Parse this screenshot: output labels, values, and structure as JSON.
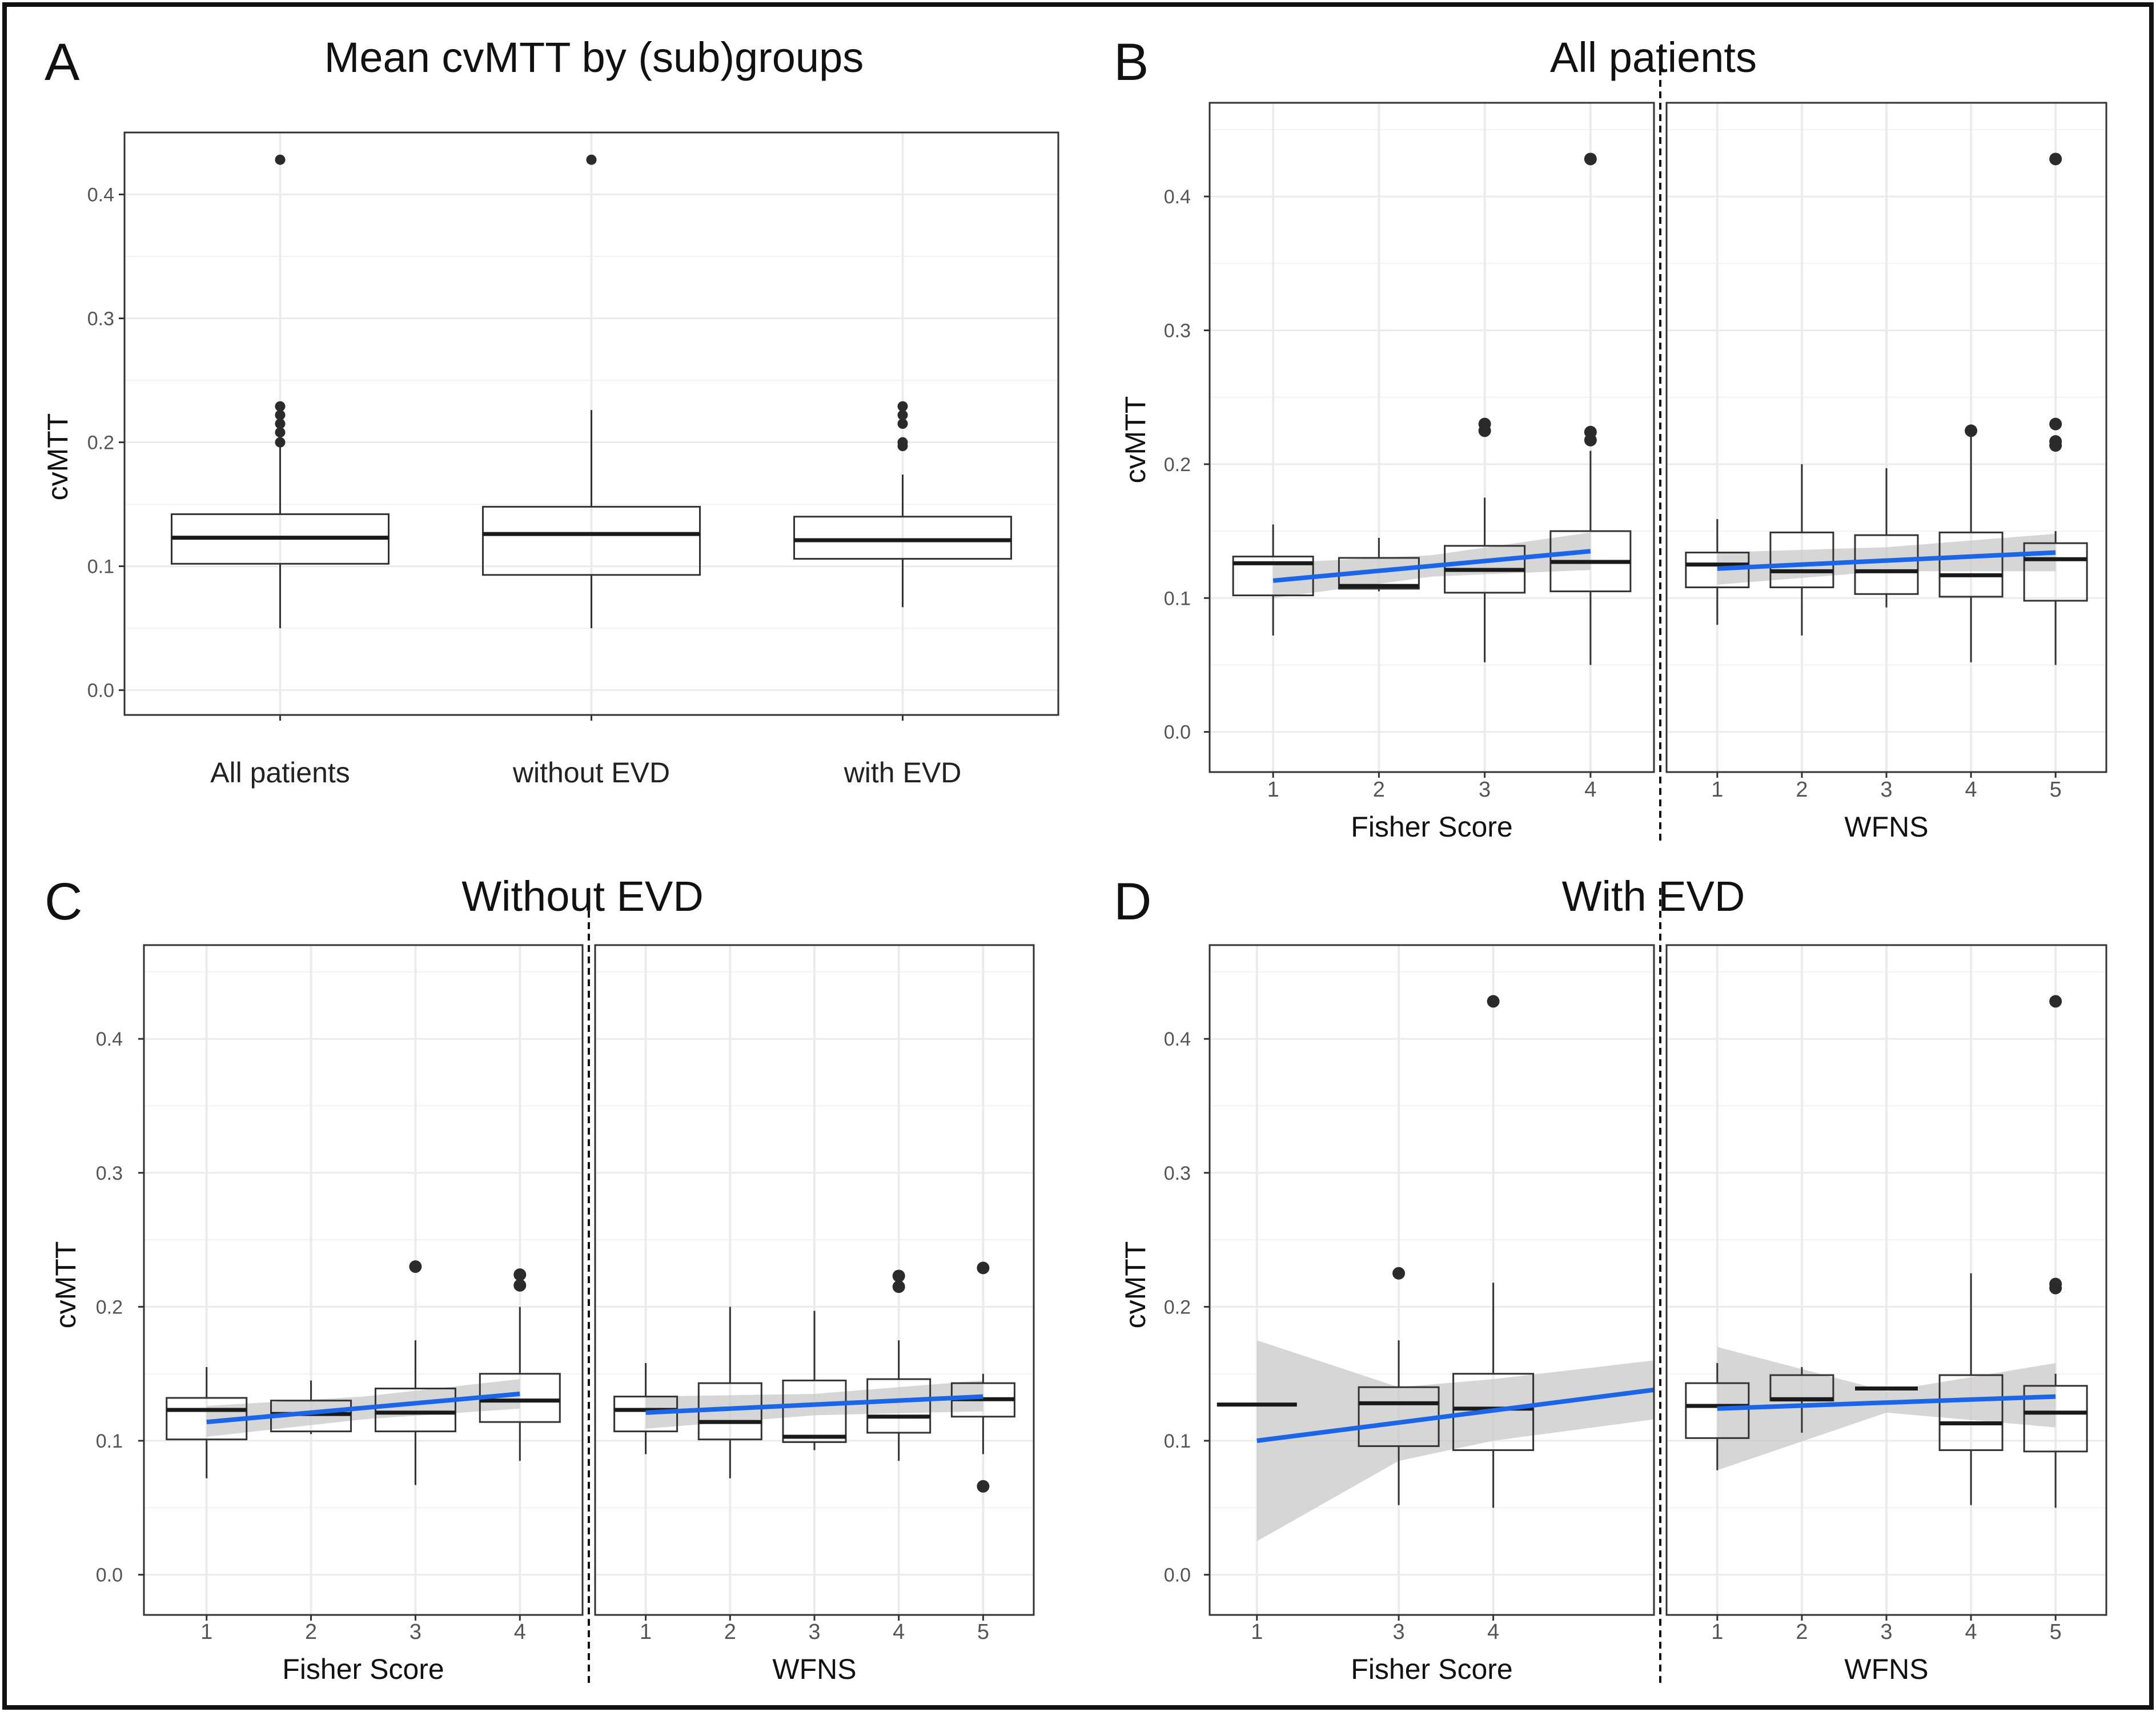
{
  "colors": {
    "fit_line": "#1a66e6",
    "ribbon": "#c8c8c8",
    "box_stroke": "#333333",
    "grid": "#ebebeb",
    "outlier": "#2b2b2b"
  },
  "chart_data": [
    {
      "id": "A",
      "type": "box",
      "letter": "A",
      "title": "Mean cvMTT by (sub)groups",
      "ylabel": "cvMTT",
      "ylim": [
        -0.02,
        0.45
      ],
      "yticks": [
        "0.0",
        "0.1",
        "0.2",
        "0.3",
        "0.4"
      ],
      "facets": [
        {
          "xlabel": "",
          "xlim": [
            0.5,
            3.5
          ],
          "categories": [
            "All patients",
            "without EVD",
            "with EVD"
          ],
          "boxes": [
            {
              "x": 1,
              "min": 0.05,
              "q1": 0.102,
              "median": 0.123,
              "q3": 0.142,
              "max": 0.199,
              "outliers": [
                0.2,
                0.208,
                0.215,
                0.222,
                0.229,
                0.428
              ]
            },
            {
              "x": 2,
              "min": 0.05,
              "q1": 0.093,
              "median": 0.126,
              "q3": 0.148,
              "max": 0.226,
              "outliers": [
                0.428
              ]
            },
            {
              "x": 3,
              "min": 0.067,
              "q1": 0.106,
              "median": 0.121,
              "q3": 0.14,
              "max": 0.174,
              "outliers": [
                0.197,
                0.2,
                0.215,
                0.222,
                0.229
              ]
            }
          ]
        }
      ]
    },
    {
      "id": "B",
      "type": "box+regression",
      "letter": "B",
      "title": "All patients",
      "ylabel": "cvMTT",
      "ylim": [
        -0.03,
        0.47
      ],
      "yticks": [
        "0.0",
        "0.1",
        "0.2",
        "0.3",
        "0.4"
      ],
      "facets": [
        {
          "xlabel": "Fisher Score",
          "xlim": [
            0.4,
            4.6
          ],
          "categories": [
            "1",
            "2",
            "3",
            "4"
          ],
          "boxes": [
            {
              "x": 1,
              "min": 0.072,
              "q1": 0.102,
              "median": 0.126,
              "q3": 0.131,
              "max": 0.155,
              "outliers": []
            },
            {
              "x": 2,
              "min": 0.105,
              "q1": 0.107,
              "median": 0.109,
              "q3": 0.13,
              "max": 0.145,
              "outliers": []
            },
            {
              "x": 3,
              "min": 0.052,
              "q1": 0.104,
              "median": 0.121,
              "q3": 0.139,
              "max": 0.175,
              "outliers": [
                0.225,
                0.23
              ]
            },
            {
              "x": 4,
              "min": 0.05,
              "q1": 0.105,
              "median": 0.127,
              "q3": 0.15,
              "max": 0.21,
              "outliers": [
                0.218,
                0.224,
                0.428
              ]
            }
          ],
          "fit": {
            "x0": 1,
            "x1": 4,
            "y0": 0.113,
            "y1": 0.135
          },
          "ribbon": {
            "x": [
              1,
              2.5,
              4
            ],
            "lower": [
              0.1,
              0.116,
              0.121
            ],
            "upper": [
              0.126,
              0.132,
              0.149
            ]
          }
        },
        {
          "xlabel": "WFNS",
          "xlim": [
            0.4,
            5.6
          ],
          "categories": [
            "1",
            "2",
            "3",
            "4",
            "5"
          ],
          "boxes": [
            {
              "x": 1,
              "min": 0.08,
              "q1": 0.108,
              "median": 0.125,
              "q3": 0.134,
              "max": 0.159,
              "outliers": []
            },
            {
              "x": 2,
              "min": 0.072,
              "q1": 0.108,
              "median": 0.12,
              "q3": 0.149,
              "max": 0.2,
              "outliers": []
            },
            {
              "x": 3,
              "min": 0.093,
              "q1": 0.103,
              "median": 0.12,
              "q3": 0.147,
              "max": 0.197,
              "outliers": []
            },
            {
              "x": 4,
              "min": 0.052,
              "q1": 0.101,
              "median": 0.117,
              "q3": 0.149,
              "max": 0.221,
              "outliers": [
                0.225
              ]
            },
            {
              "x": 5,
              "min": 0.05,
              "q1": 0.098,
              "median": 0.129,
              "q3": 0.141,
              "max": 0.15,
              "outliers": [
                0.214,
                0.217,
                0.23,
                0.428
              ]
            }
          ],
          "fit": {
            "x0": 1,
            "x1": 5,
            "y0": 0.122,
            "y1": 0.134
          },
          "ribbon": {
            "x": [
              1,
              3,
              5
            ],
            "lower": [
              0.11,
              0.12,
              0.12
            ],
            "upper": [
              0.134,
              0.138,
              0.148
            ]
          }
        }
      ]
    },
    {
      "id": "C",
      "type": "box+regression",
      "letter": "C",
      "title": "Without EVD",
      "ylabel": "cvMTT",
      "ylim": [
        -0.03,
        0.47
      ],
      "yticks": [
        "0.0",
        "0.1",
        "0.2",
        "0.3",
        "0.4"
      ],
      "facets": [
        {
          "xlabel": "Fisher Score",
          "xlim": [
            0.4,
            4.6
          ],
          "categories": [
            "1",
            "2",
            "3",
            "4"
          ],
          "boxes": [
            {
              "x": 1,
              "min": 0.072,
              "q1": 0.101,
              "median": 0.123,
              "q3": 0.132,
              "max": 0.155,
              "outliers": []
            },
            {
              "x": 2,
              "min": 0.105,
              "q1": 0.107,
              "median": 0.12,
              "q3": 0.13,
              "max": 0.145,
              "outliers": []
            },
            {
              "x": 3,
              "min": 0.067,
              "q1": 0.107,
              "median": 0.121,
              "q3": 0.139,
              "max": 0.175,
              "outliers": [
                0.23
              ]
            },
            {
              "x": 4,
              "min": 0.085,
              "q1": 0.114,
              "median": 0.13,
              "q3": 0.15,
              "max": 0.2,
              "outliers": [
                0.216,
                0.224
              ]
            }
          ],
          "fit": {
            "x0": 1,
            "x1": 4,
            "y0": 0.114,
            "y1": 0.135
          },
          "ribbon": {
            "x": [
              1,
              2.5,
              4
            ],
            "lower": [
              0.103,
              0.116,
              0.124
            ],
            "upper": [
              0.126,
              0.133,
              0.146
            ]
          }
        },
        {
          "xlabel": "WFNS",
          "xlim": [
            0.4,
            5.6
          ],
          "categories": [
            "1",
            "2",
            "3",
            "4",
            "5"
          ],
          "boxes": [
            {
              "x": 1,
              "min": 0.09,
              "q1": 0.107,
              "median": 0.123,
              "q3": 0.133,
              "max": 0.158,
              "outliers": []
            },
            {
              "x": 2,
              "min": 0.072,
              "q1": 0.101,
              "median": 0.114,
              "q3": 0.143,
              "max": 0.2,
              "outliers": []
            },
            {
              "x": 3,
              "min": 0.093,
              "q1": 0.099,
              "median": 0.103,
              "q3": 0.145,
              "max": 0.197,
              "outliers": []
            },
            {
              "x": 4,
              "min": 0.085,
              "q1": 0.106,
              "median": 0.118,
              "q3": 0.146,
              "max": 0.175,
              "outliers": [
                0.215,
                0.223
              ]
            },
            {
              "x": 5,
              "min": 0.09,
              "q1": 0.118,
              "median": 0.131,
              "q3": 0.143,
              "max": 0.15,
              "outliers": [
                0.066,
                0.229
              ]
            }
          ],
          "fit": {
            "x0": 1,
            "x1": 5,
            "y0": 0.121,
            "y1": 0.133
          },
          "ribbon": {
            "x": [
              1,
              3,
              5
            ],
            "lower": [
              0.109,
              0.119,
              0.122
            ],
            "upper": [
              0.133,
              0.135,
              0.145
            ]
          }
        }
      ]
    },
    {
      "id": "D",
      "type": "box+regression",
      "letter": "D",
      "title": "With EVD",
      "ylabel": "cvMTT",
      "ylim": [
        -0.03,
        0.47
      ],
      "yticks": [
        "0.0",
        "0.1",
        "0.2",
        "0.3",
        "0.4"
      ],
      "facets": [
        {
          "xlabel": "Fisher Score",
          "xlim": [
            0.5,
            5.2
          ],
          "categories": [
            "1",
            "3",
            "4"
          ],
          "tick_positions": [
            1,
            2.5,
            3.5
          ],
          "boxes": [
            {
              "x": 1,
              "min": 0.127,
              "q1": 0.127,
              "median": 0.127,
              "q3": 0.127,
              "max": 0.127,
              "outliers": []
            },
            {
              "x": 2.5,
              "min": 0.052,
              "q1": 0.096,
              "median": 0.128,
              "q3": 0.14,
              "max": 0.175,
              "outliers": [
                0.225
              ]
            },
            {
              "x": 3.5,
              "min": 0.05,
              "q1": 0.093,
              "median": 0.124,
              "q3": 0.15,
              "max": 0.218,
              "outliers": [
                0.428
              ]
            }
          ],
          "fit": {
            "x0": 1,
            "x1": 5.2,
            "y0": 0.1,
            "y1": 0.138
          },
          "ribbon": {
            "x": [
              1,
              2.5,
              3.5,
              5.2
            ],
            "lower": [
              0.025,
              0.085,
              0.1,
              0.116
            ],
            "upper": [
              0.175,
              0.14,
              0.146,
              0.16
            ]
          }
        },
        {
          "xlabel": "WFNS",
          "xlim": [
            0.4,
            5.6
          ],
          "categories": [
            "1",
            "2",
            "3",
            "4",
            "5"
          ],
          "boxes": [
            {
              "x": 1,
              "min": 0.078,
              "q1": 0.102,
              "median": 0.126,
              "q3": 0.143,
              "max": 0.158,
              "outliers": []
            },
            {
              "x": 2,
              "min": 0.106,
              "q1": 0.13,
              "median": 0.131,
              "q3": 0.149,
              "max": 0.155,
              "outliers": []
            },
            {
              "x": 3,
              "min": 0.139,
              "q1": 0.139,
              "median": 0.139,
              "q3": 0.139,
              "max": 0.139,
              "outliers": []
            },
            {
              "x": 4,
              "min": 0.052,
              "q1": 0.093,
              "median": 0.113,
              "q3": 0.149,
              "max": 0.225,
              "outliers": []
            },
            {
              "x": 5,
              "min": 0.05,
              "q1": 0.092,
              "median": 0.121,
              "q3": 0.141,
              "max": 0.15,
              "outliers": [
                0.214,
                0.217,
                0.428
              ]
            }
          ],
          "fit": {
            "x0": 1,
            "x1": 5,
            "y0": 0.124,
            "y1": 0.133
          },
          "ribbon": {
            "x": [
              1,
              3,
              5
            ],
            "lower": [
              0.078,
              0.121,
              0.11
            ],
            "upper": [
              0.17,
              0.137,
              0.158
            ]
          }
        }
      ]
    }
  ]
}
